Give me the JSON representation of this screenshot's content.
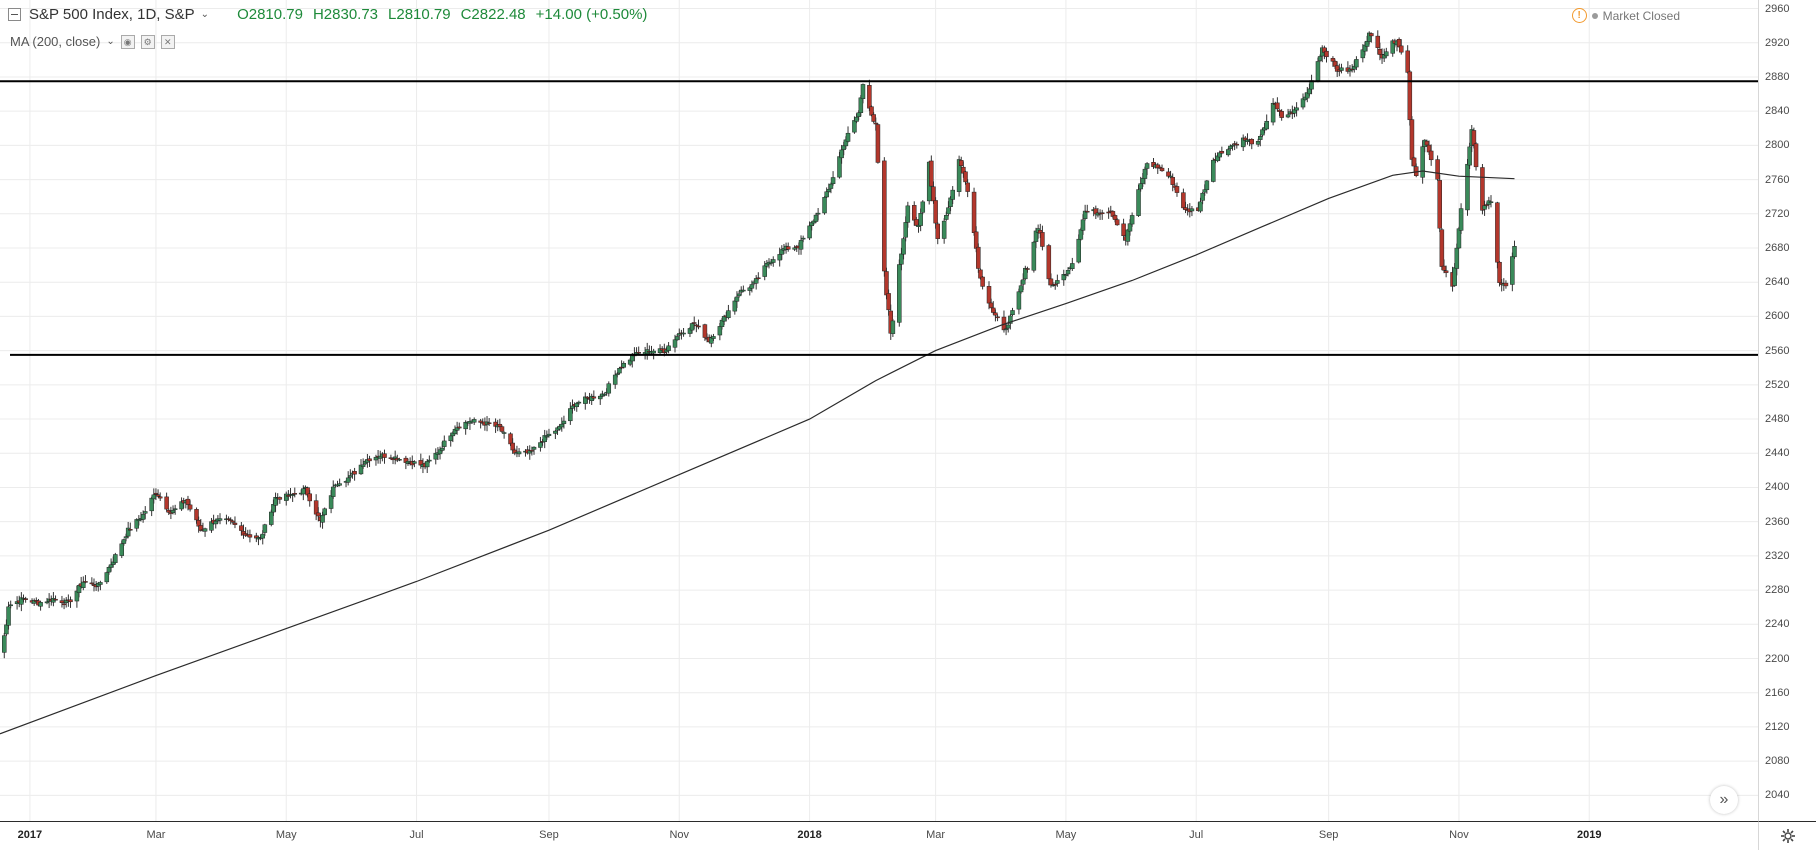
{
  "legend": {
    "symbol": "S&P 500 Index, 1D, S&P",
    "open": "O2810.79",
    "high": "H2830.73",
    "low": "L2810.79",
    "close": "C2822.48",
    "change": "+14.00 (+0.50%)"
  },
  "study": {
    "label": "MA (200, close)"
  },
  "market_status": {
    "label": "Market Closed"
  },
  "colors": {
    "up": "#3a8a5a",
    "down": "#b3372c",
    "wick": "#333333",
    "grid": "#ececec",
    "ma": "#2b2b2b",
    "levels": "#000000",
    "ohlc_text": "#1e8a3a"
  },
  "chart_data": {
    "type": "candlestick",
    "title": "S&P 500 Index, 1D, S&P",
    "xlabel": "",
    "ylabel": "",
    "ylim": [
      2010,
      2970
    ],
    "xlim": [
      "2016-12-18",
      "2019-03-21"
    ],
    "yticks": [
      2040,
      2080,
      2120,
      2160,
      2200,
      2240,
      2280,
      2320,
      2360,
      2400,
      2440,
      2480,
      2520,
      2560,
      2600,
      2640,
      2680,
      2720,
      2760,
      2800,
      2840,
      2880,
      2920,
      2960
    ],
    "xticks": [
      {
        "date": "2017-01-01",
        "label": "2017",
        "bold": true
      },
      {
        "date": "2017-03-01",
        "label": "Mar",
        "bold": false
      },
      {
        "date": "2017-05-01",
        "label": "May",
        "bold": false
      },
      {
        "date": "2017-07-01",
        "label": "Jul",
        "bold": false
      },
      {
        "date": "2017-09-01",
        "label": "Sep",
        "bold": false
      },
      {
        "date": "2017-11-01",
        "label": "Nov",
        "bold": false
      },
      {
        "date": "2018-01-01",
        "label": "2018",
        "bold": true
      },
      {
        "date": "2018-03-01",
        "label": "Mar",
        "bold": false
      },
      {
        "date": "2018-05-01",
        "label": "May",
        "bold": false
      },
      {
        "date": "2018-07-01",
        "label": "Jul",
        "bold": false
      },
      {
        "date": "2018-09-01",
        "label": "Sep",
        "bold": false
      },
      {
        "date": "2018-11-01",
        "label": "Nov",
        "bold": false
      },
      {
        "date": "2019-01-01",
        "label": "2019",
        "bold": true
      }
    ],
    "horizontal_levels": [
      2875,
      2555
    ],
    "series": [
      {
        "name": "S&P 500 (daily close, approx.)",
        "points": [
          [
            "2016-12-18",
            2190
          ],
          [
            "2016-12-22",
            2262
          ],
          [
            "2016-12-29",
            2270
          ],
          [
            "2017-01-05",
            2265
          ],
          [
            "2017-01-12",
            2270
          ],
          [
            "2017-01-19",
            2265
          ],
          [
            "2017-01-26",
            2290
          ],
          [
            "2017-02-02",
            2285
          ],
          [
            "2017-02-09",
            2315
          ],
          [
            "2017-02-16",
            2350
          ],
          [
            "2017-02-23",
            2368
          ],
          [
            "2017-03-01",
            2395
          ],
          [
            "2017-03-08",
            2370
          ],
          [
            "2017-03-15",
            2385
          ],
          [
            "2017-03-22",
            2350
          ],
          [
            "2017-03-29",
            2362
          ],
          [
            "2017-04-05",
            2360
          ],
          [
            "2017-04-12",
            2345
          ],
          [
            "2017-04-19",
            2340
          ],
          [
            "2017-04-26",
            2388
          ],
          [
            "2017-05-03",
            2390
          ],
          [
            "2017-05-10",
            2398
          ],
          [
            "2017-05-17",
            2360
          ],
          [
            "2017-05-24",
            2405
          ],
          [
            "2017-05-31",
            2412
          ],
          [
            "2017-06-07",
            2432
          ],
          [
            "2017-06-14",
            2438
          ],
          [
            "2017-06-21",
            2435
          ],
          [
            "2017-06-28",
            2430
          ],
          [
            "2017-07-05",
            2425
          ],
          [
            "2017-07-12",
            2445
          ],
          [
            "2017-07-19",
            2470
          ],
          [
            "2017-07-26",
            2478
          ],
          [
            "2017-08-02",
            2475
          ],
          [
            "2017-08-09",
            2470
          ],
          [
            "2017-08-16",
            2440
          ],
          [
            "2017-08-23",
            2440
          ],
          [
            "2017-08-30",
            2458
          ],
          [
            "2017-09-06",
            2470
          ],
          [
            "2017-09-13",
            2498
          ],
          [
            "2017-09-20",
            2505
          ],
          [
            "2017-09-27",
            2510
          ],
          [
            "2017-10-04",
            2540
          ],
          [
            "2017-10-11",
            2555
          ],
          [
            "2017-10-18",
            2560
          ],
          [
            "2017-10-25",
            2560
          ],
          [
            "2017-11-01",
            2580
          ],
          [
            "2017-11-08",
            2592
          ],
          [
            "2017-11-15",
            2572
          ],
          [
            "2017-11-22",
            2598
          ],
          [
            "2017-11-29",
            2628
          ],
          [
            "2017-12-06",
            2638
          ],
          [
            "2017-12-13",
            2664
          ],
          [
            "2017-12-20",
            2679
          ],
          [
            "2017-12-27",
            2682
          ],
          [
            "2018-01-03",
            2713
          ],
          [
            "2018-01-10",
            2748
          ],
          [
            "2018-01-17",
            2802
          ],
          [
            "2018-01-24",
            2838
          ],
          [
            "2018-01-26",
            2872
          ],
          [
            "2018-02-01",
            2820
          ],
          [
            "2018-02-05",
            2648
          ],
          [
            "2018-02-08",
            2581
          ],
          [
            "2018-02-12",
            2656
          ],
          [
            "2018-02-16",
            2732
          ],
          [
            "2018-02-21",
            2701
          ],
          [
            "2018-02-26",
            2780
          ],
          [
            "2018-03-02",
            2691
          ],
          [
            "2018-03-07",
            2727
          ],
          [
            "2018-03-12",
            2783
          ],
          [
            "2018-03-16",
            2752
          ],
          [
            "2018-03-22",
            2644
          ],
          [
            "2018-03-28",
            2605
          ],
          [
            "2018-04-02",
            2582
          ],
          [
            "2018-04-06",
            2604
          ],
          [
            "2018-04-11",
            2642
          ],
          [
            "2018-04-18",
            2708
          ],
          [
            "2018-04-24",
            2634
          ],
          [
            "2018-04-30",
            2648
          ],
          [
            "2018-05-04",
            2663
          ],
          [
            "2018-05-10",
            2723
          ],
          [
            "2018-05-16",
            2722
          ],
          [
            "2018-05-22",
            2724
          ],
          [
            "2018-05-29",
            2690
          ],
          [
            "2018-06-04",
            2746
          ],
          [
            "2018-06-08",
            2779
          ],
          [
            "2018-06-13",
            2775
          ],
          [
            "2018-06-19",
            2762
          ],
          [
            "2018-06-26",
            2723
          ],
          [
            "2018-07-02",
            2726
          ],
          [
            "2018-07-09",
            2784
          ],
          [
            "2018-07-16",
            2798
          ],
          [
            "2018-07-23",
            2807
          ],
          [
            "2018-07-30",
            2802
          ],
          [
            "2018-08-06",
            2850
          ],
          [
            "2018-08-10",
            2833
          ],
          [
            "2018-08-16",
            2840
          ],
          [
            "2018-08-22",
            2861
          ],
          [
            "2018-08-29",
            2914
          ],
          [
            "2018-09-05",
            2888
          ],
          [
            "2018-09-12",
            2888
          ],
          [
            "2018-09-20",
            2930
          ],
          [
            "2018-09-26",
            2905
          ],
          [
            "2018-10-03",
            2925
          ],
          [
            "2018-10-08",
            2884
          ],
          [
            "2018-10-10",
            2785
          ],
          [
            "2018-10-12",
            2767
          ],
          [
            "2018-10-16",
            2809
          ],
          [
            "2018-10-22",
            2755
          ],
          [
            "2018-10-24",
            2656
          ],
          [
            "2018-10-29",
            2641
          ],
          [
            "2018-11-02",
            2723
          ],
          [
            "2018-11-07",
            2813
          ],
          [
            "2018-11-12",
            2726
          ],
          [
            "2018-11-16",
            2736
          ],
          [
            "2018-11-20",
            2641
          ],
          [
            "2018-11-23",
            2633
          ],
          [
            "2018-11-26",
            2673
          ],
          [
            "2018-11-27",
            2682
          ]
        ]
      },
      {
        "name": "MA (200, close)",
        "points": [
          [
            "2016-12-18",
            2112
          ],
          [
            "2017-03-01",
            2180
          ],
          [
            "2017-05-01",
            2235
          ],
          [
            "2017-07-01",
            2290
          ],
          [
            "2017-09-01",
            2350
          ],
          [
            "2017-11-01",
            2415
          ],
          [
            "2018-01-01",
            2480
          ],
          [
            "2018-02-01",
            2525
          ],
          [
            "2018-03-01",
            2560
          ],
          [
            "2018-04-01",
            2590
          ],
          [
            "2018-05-01",
            2615
          ],
          [
            "2018-06-01",
            2642
          ],
          [
            "2018-07-01",
            2672
          ],
          [
            "2018-08-01",
            2705
          ],
          [
            "2018-09-01",
            2738
          ],
          [
            "2018-10-01",
            2765
          ],
          [
            "2018-10-15",
            2770
          ],
          [
            "2018-11-01",
            2764
          ],
          [
            "2018-11-27",
            2761
          ]
        ]
      }
    ]
  }
}
